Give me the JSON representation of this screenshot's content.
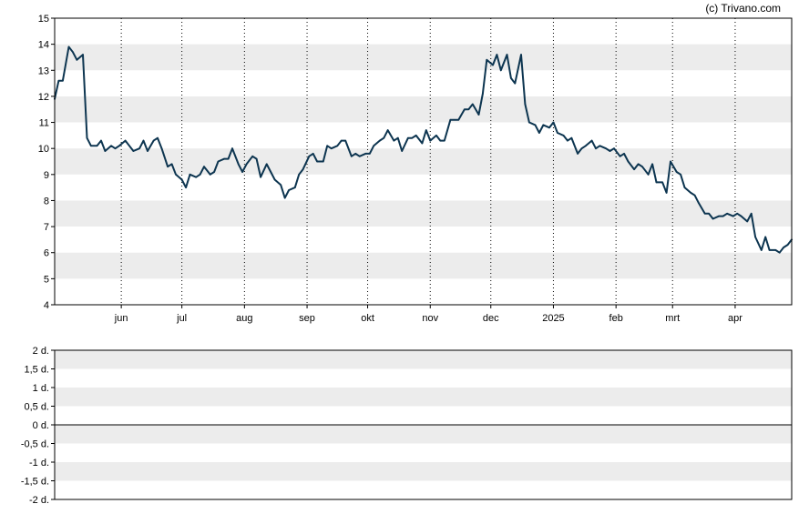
{
  "credit": "(c) Trivano.com",
  "colors": {
    "line": "#0d3550",
    "band": "#ececec",
    "grid": "#000000",
    "background": "#ffffff"
  },
  "chart_data": [
    {
      "type": "line",
      "title": "",
      "xlabel": "",
      "ylabel": "",
      "ylim": [
        4,
        15
      ],
      "y_ticks": [
        "4",
        "5",
        "6",
        "7",
        "8",
        "9",
        "10",
        "11",
        "12",
        "13",
        "14",
        "15"
      ],
      "x_ticks": [
        "jun",
        "jul",
        "aug",
        "sep",
        "okt",
        "nov",
        "dec",
        "2025",
        "feb",
        "mrt",
        "apr"
      ],
      "grid": "vertical dotted month lines, alternating horizontal bands",
      "x_range": [
        "2024-04-29",
        "2025-04-29"
      ],
      "series": [
        {
          "name": "",
          "points": [
            [
              "2024-04-29",
              11.9
            ],
            [
              "2024-05-01",
              12.6
            ],
            [
              "2024-05-03",
              12.6
            ],
            [
              "2024-05-06",
              13.9
            ],
            [
              "2024-05-08",
              13.7
            ],
            [
              "2024-05-10",
              13.4
            ],
            [
              "2024-05-13",
              13.6
            ],
            [
              "2024-05-15",
              10.4
            ],
            [
              "2024-05-17",
              10.1
            ],
            [
              "2024-05-20",
              10.1
            ],
            [
              "2024-05-22",
              10.3
            ],
            [
              "2024-05-24",
              9.9
            ],
            [
              "2024-05-27",
              10.1
            ],
            [
              "2024-05-29",
              10.0
            ],
            [
              "2024-05-31",
              10.1
            ],
            [
              "2024-06-03",
              10.3
            ],
            [
              "2024-06-05",
              10.1
            ],
            [
              "2024-06-07",
              9.9
            ],
            [
              "2024-06-10",
              10.0
            ],
            [
              "2024-06-12",
              10.3
            ],
            [
              "2024-06-14",
              9.9
            ],
            [
              "2024-06-17",
              10.3
            ],
            [
              "2024-06-19",
              10.4
            ],
            [
              "2024-06-21",
              10.0
            ],
            [
              "2024-06-24",
              9.3
            ],
            [
              "2024-06-26",
              9.4
            ],
            [
              "2024-06-28",
              9.0
            ],
            [
              "2024-07-01",
              8.8
            ],
            [
              "2024-07-03",
              8.5
            ],
            [
              "2024-07-05",
              9.0
            ],
            [
              "2024-07-08",
              8.9
            ],
            [
              "2024-07-10",
              9.0
            ],
            [
              "2024-07-12",
              9.3
            ],
            [
              "2024-07-15",
              9.0
            ],
            [
              "2024-07-17",
              9.1
            ],
            [
              "2024-07-19",
              9.5
            ],
            [
              "2024-07-22",
              9.6
            ],
            [
              "2024-07-24",
              9.6
            ],
            [
              "2024-07-26",
              10.0
            ],
            [
              "2024-07-29",
              9.4
            ],
            [
              "2024-07-31",
              9.1
            ],
            [
              "2024-08-02",
              9.4
            ],
            [
              "2024-08-05",
              9.7
            ],
            [
              "2024-08-07",
              9.6
            ],
            [
              "2024-08-09",
              8.9
            ],
            [
              "2024-08-12",
              9.4
            ],
            [
              "2024-08-14",
              9.1
            ],
            [
              "2024-08-16",
              8.8
            ],
            [
              "2024-08-19",
              8.6
            ],
            [
              "2024-08-21",
              8.1
            ],
            [
              "2024-08-23",
              8.4
            ],
            [
              "2024-08-26",
              8.5
            ],
            [
              "2024-08-28",
              9.0
            ],
            [
              "2024-08-30",
              9.2
            ],
            [
              "2024-09-02",
              9.7
            ],
            [
              "2024-09-04",
              9.8
            ],
            [
              "2024-09-06",
              9.5
            ],
            [
              "2024-09-09",
              9.5
            ],
            [
              "2024-09-11",
              10.1
            ],
            [
              "2024-09-13",
              10.0
            ],
            [
              "2024-09-16",
              10.1
            ],
            [
              "2024-09-18",
              10.3
            ],
            [
              "2024-09-20",
              10.3
            ],
            [
              "2024-09-23",
              9.7
            ],
            [
              "2024-09-25",
              9.8
            ],
            [
              "2024-09-27",
              9.7
            ],
            [
              "2024-09-30",
              9.8
            ],
            [
              "2024-10-02",
              9.8
            ],
            [
              "2024-10-04",
              10.1
            ],
            [
              "2024-10-07",
              10.3
            ],
            [
              "2024-10-09",
              10.4
            ],
            [
              "2024-10-11",
              10.7
            ],
            [
              "2024-10-14",
              10.3
            ],
            [
              "2024-10-16",
              10.4
            ],
            [
              "2024-10-18",
              9.9
            ],
            [
              "2024-10-21",
              10.4
            ],
            [
              "2024-10-23",
              10.4
            ],
            [
              "2024-10-25",
              10.5
            ],
            [
              "2024-10-28",
              10.2
            ],
            [
              "2024-10-30",
              10.7
            ],
            [
              "2024-11-01",
              10.3
            ],
            [
              "2024-11-04",
              10.5
            ],
            [
              "2024-11-06",
              10.3
            ],
            [
              "2024-11-08",
              10.3
            ],
            [
              "2024-11-11",
              11.1
            ],
            [
              "2024-11-13",
              11.1
            ],
            [
              "2024-11-15",
              11.1
            ],
            [
              "2024-11-18",
              11.5
            ],
            [
              "2024-11-20",
              11.5
            ],
            [
              "2024-11-22",
              11.7
            ],
            [
              "2024-11-25",
              11.3
            ],
            [
              "2024-11-27",
              12.1
            ],
            [
              "2024-11-29",
              13.4
            ],
            [
              "2024-12-02",
              13.2
            ],
            [
              "2024-12-04",
              13.6
            ],
            [
              "2024-12-06",
              13.0
            ],
            [
              "2024-12-09",
              13.6
            ],
            [
              "2024-12-11",
              12.7
            ],
            [
              "2024-12-13",
              12.5
            ],
            [
              "2024-12-16",
              13.6
            ],
            [
              "2024-12-18",
              11.7
            ],
            [
              "2024-12-20",
              11.0
            ],
            [
              "2024-12-23",
              10.9
            ],
            [
              "2024-12-25",
              10.6
            ],
            [
              "2024-12-27",
              10.9
            ],
            [
              "2024-12-30",
              10.8
            ],
            [
              "2025-01-01",
              11.0
            ],
            [
              "2025-01-03",
              10.6
            ],
            [
              "2025-01-06",
              10.5
            ],
            [
              "2025-01-08",
              10.3
            ],
            [
              "2025-01-10",
              10.4
            ],
            [
              "2025-01-13",
              9.8
            ],
            [
              "2025-01-15",
              10.0
            ],
            [
              "2025-01-17",
              10.1
            ],
            [
              "2025-01-20",
              10.3
            ],
            [
              "2025-01-22",
              10.0
            ],
            [
              "2025-01-24",
              10.1
            ],
            [
              "2025-01-27",
              10.0
            ],
            [
              "2025-01-29",
              9.9
            ],
            [
              "2025-01-31",
              10.0
            ],
            [
              "2025-02-03",
              9.7
            ],
            [
              "2025-02-05",
              9.8
            ],
            [
              "2025-02-07",
              9.5
            ],
            [
              "2025-02-10",
              9.2
            ],
            [
              "2025-02-12",
              9.4
            ],
            [
              "2025-02-14",
              9.3
            ],
            [
              "2025-02-17",
              9.0
            ],
            [
              "2025-02-19",
              9.4
            ],
            [
              "2025-02-21",
              8.7
            ],
            [
              "2025-02-24",
              8.7
            ],
            [
              "2025-02-26",
              8.3
            ],
            [
              "2025-02-28",
              9.5
            ],
            [
              "2025-03-03",
              9.1
            ],
            [
              "2025-03-05",
              9.0
            ],
            [
              "2025-03-07",
              8.5
            ],
            [
              "2025-03-10",
              8.3
            ],
            [
              "2025-03-12",
              8.2
            ],
            [
              "2025-03-14",
              7.9
            ],
            [
              "2025-03-17",
              7.5
            ],
            [
              "2025-03-19",
              7.5
            ],
            [
              "2025-03-21",
              7.3
            ],
            [
              "2025-03-24",
              7.4
            ],
            [
              "2025-03-26",
              7.4
            ],
            [
              "2025-03-28",
              7.5
            ],
            [
              "2025-03-31",
              7.4
            ],
            [
              "2025-04-02",
              7.5
            ],
            [
              "2025-04-04",
              7.4
            ],
            [
              "2025-04-07",
              7.2
            ],
            [
              "2025-04-09",
              7.5
            ],
            [
              "2025-04-11",
              6.6
            ],
            [
              "2025-04-14",
              6.1
            ],
            [
              "2025-04-16",
              6.6
            ],
            [
              "2025-04-18",
              6.1
            ],
            [
              "2025-04-21",
              6.1
            ],
            [
              "2025-04-23",
              6.0
            ],
            [
              "2025-04-25",
              6.2
            ],
            [
              "2025-04-27",
              6.3
            ],
            [
              "2025-04-29",
              6.5
            ]
          ]
        }
      ]
    },
    {
      "type": "line",
      "title": "",
      "xlabel": "",
      "ylabel": "",
      "ylim": [
        -2,
        2
      ],
      "y_ticks": [
        "2 d.",
        "1,5 d.",
        "1 d.",
        "0,5 d.",
        "0 d.",
        "-0,5 d.",
        "-1 d.",
        "-1,5 d.",
        "-2 d."
      ],
      "series": []
    }
  ]
}
